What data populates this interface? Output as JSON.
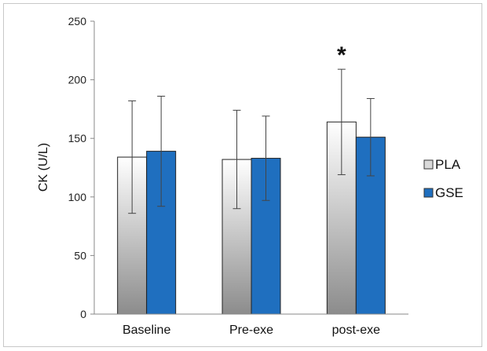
{
  "chart_data": {
    "type": "bar",
    "title": "",
    "xlabel": "",
    "ylabel": "CK (U/L)",
    "ylim": [
      0,
      250
    ],
    "yticks": [
      0,
      50,
      100,
      150,
      200,
      250
    ],
    "grid": false,
    "legend_position": "right",
    "categories": [
      "Baseline",
      "Pre-exe",
      "post-exe"
    ],
    "series": [
      {
        "name": "PLA",
        "color": "#d9d9d9",
        "values": [
          134,
          132,
          164
        ],
        "error": [
          48,
          42,
          45
        ]
      },
      {
        "name": "GSE",
        "color": "#1f6fbf",
        "values": [
          139,
          133,
          151
        ],
        "error": [
          47,
          36,
          33
        ]
      }
    ],
    "annotations": [
      {
        "text": "*",
        "category": "post-exe",
        "series": "PLA"
      }
    ]
  }
}
